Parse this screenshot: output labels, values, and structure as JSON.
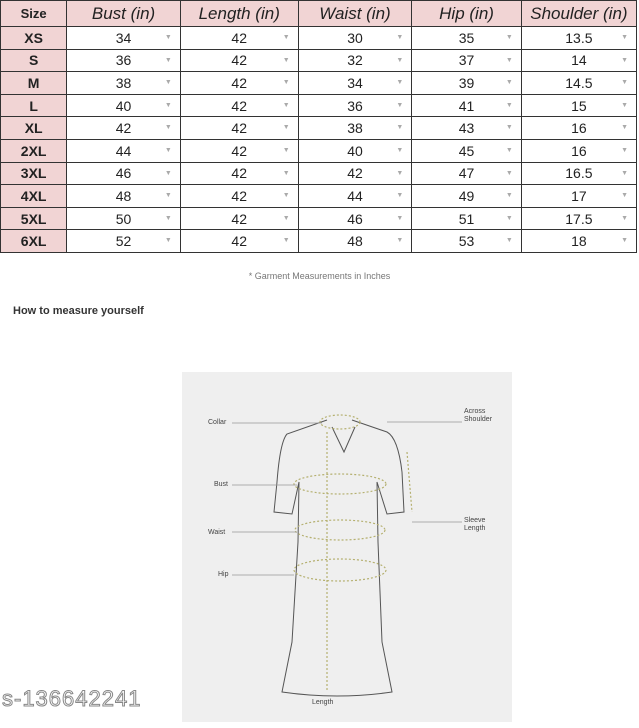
{
  "table": {
    "headers": [
      "Size",
      "Bust (in)",
      "Length (in)",
      "Waist (in)",
      "Hip (in)",
      "Shoulder (in)"
    ],
    "rows": [
      [
        "XS",
        "34",
        "42",
        "30",
        "35",
        "13.5"
      ],
      [
        "S",
        "36",
        "42",
        "32",
        "37",
        "14"
      ],
      [
        "M",
        "38",
        "42",
        "34",
        "39",
        "14.5"
      ],
      [
        "L",
        "40",
        "42",
        "36",
        "41",
        "15"
      ],
      [
        "XL",
        "42",
        "42",
        "38",
        "43",
        "16"
      ],
      [
        "2XL",
        "44",
        "42",
        "40",
        "45",
        "16"
      ],
      [
        "3XL",
        "46",
        "42",
        "42",
        "47",
        "16.5"
      ],
      [
        "4XL",
        "48",
        "42",
        "44",
        "49",
        "17"
      ],
      [
        "5XL",
        "50",
        "42",
        "46",
        "51",
        "17.5"
      ],
      [
        "6XL",
        "52",
        "42",
        "48",
        "53",
        "18"
      ]
    ]
  },
  "note": "* Garment Measurements in Inches",
  "howto": "How to measure yourself",
  "diagram": {
    "collar": "Collar",
    "across_shoulder": "Across Shoulder",
    "bust": "Bust",
    "sleeve_length": "Sleeve Length",
    "waist": "Waist",
    "hip": "Hip",
    "length": "Length"
  },
  "watermark": "s-136642241"
}
